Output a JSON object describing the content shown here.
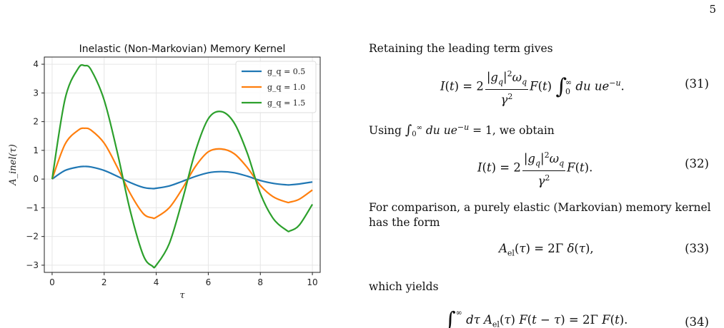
{
  "page_number": "5",
  "chart_data": {
    "type": "line",
    "title": "Inelastic (Non-Markovian) Memory Kernel",
    "xlabel": "τ",
    "ylabel": "A_inel(τ)",
    "xlim": [
      -0.3,
      10.3
    ],
    "ylim": [
      -3.25,
      4.25
    ],
    "xticks": [
      0,
      2,
      4,
      6,
      8,
      10
    ],
    "yticks": [
      -3,
      -2,
      -1,
      0,
      1,
      2,
      3,
      4
    ],
    "grid": true,
    "legend_position": "top-right",
    "x": [
      0,
      0.5,
      1,
      1.25,
      1.5,
      2,
      2.5,
      3,
      3.5,
      3.85,
      4,
      4.5,
      5,
      5.5,
      6,
      6.5,
      7,
      7.5,
      8,
      8.5,
      9,
      9.15,
      9.5,
      10
    ],
    "series": [
      {
        "name": "g_q = 0.5",
        "color": "#1f77b4",
        "values": [
          0,
          0.3,
          0.42,
          0.44,
          0.42,
          0.3,
          0.1,
          -0.12,
          -0.29,
          -0.33,
          -0.32,
          -0.24,
          -0.08,
          0.09,
          0.22,
          0.26,
          0.22,
          0.1,
          -0.05,
          -0.15,
          -0.2,
          -0.2,
          -0.17,
          -0.1
        ]
      },
      {
        "name": "g_q = 1.0",
        "color": "#ff7f0e",
        "values": [
          0,
          1.22,
          1.7,
          1.77,
          1.7,
          1.25,
          0.42,
          -0.5,
          -1.2,
          -1.35,
          -1.33,
          -1.0,
          -0.34,
          0.43,
          0.95,
          1.05,
          0.88,
          0.4,
          -0.22,
          -0.62,
          -0.8,
          -0.8,
          -0.7,
          -0.38
        ]
      },
      {
        "name": "g_q = 1.5",
        "color": "#2ca02c",
        "values": [
          0,
          2.8,
          3.85,
          3.95,
          3.8,
          2.75,
          0.95,
          -1.1,
          -2.65,
          -3.03,
          -3.0,
          -2.25,
          -0.75,
          0.95,
          2.1,
          2.35,
          1.95,
          0.9,
          -0.5,
          -1.38,
          -1.78,
          -1.8,
          -1.6,
          -0.88
        ]
      }
    ]
  },
  "text": {
    "p1": "Retaining the leading term gives",
    "p2_intro": "Using",
    "p2_tail": ", we obtain",
    "p3": "For comparison, a purely elastic (Markovian) memory kernel has the form",
    "p4": "which yields"
  },
  "equations": {
    "n31": "(31)",
    "n32": "(32)",
    "n33": "(33)",
    "n34": "(34)"
  }
}
